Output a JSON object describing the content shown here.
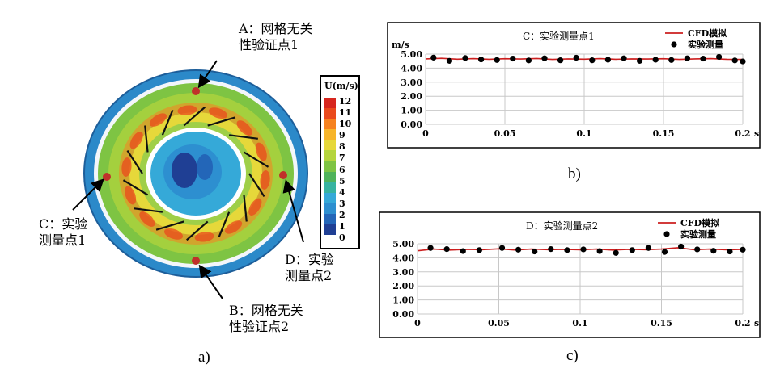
{
  "panel_a": {
    "caption": "a)",
    "callouts": {
      "A": [
        "A：网格无关",
        "性验证点1"
      ],
      "B": [
        "B：网格无关",
        "性验证点2"
      ],
      "C": [
        "C：实验",
        "测量点1"
      ],
      "D": [
        "D：实验",
        "测量点2"
      ]
    },
    "colorbar": {
      "title": "U(m/s)",
      "ticks": [
        "12",
        "11",
        "10",
        "9",
        "8",
        "7",
        "6",
        "5",
        "4",
        "3",
        "2",
        "1",
        "0"
      ],
      "colors": [
        "#d7261e",
        "#ea4a1c",
        "#f6821f",
        "#f7b52a",
        "#e6d83a",
        "#b5d53c",
        "#7ec443",
        "#4fb35a",
        "#36b3a0",
        "#35a9d8",
        "#2d8fd0",
        "#2366b8",
        "#1f3f94"
      ]
    },
    "colors": {
      "marker": "#c0302a"
    }
  },
  "chart_data": [
    {
      "type": "scatter",
      "title": "C：实验测量点1",
      "ylabel": "m/s",
      "xlabel": "s",
      "ylim": [
        0,
        5
      ],
      "xlim": [
        0,
        0.2
      ],
      "yticks": [
        "5.00",
        "4.00",
        "3.00",
        "2.00",
        "1.00",
        "0.00"
      ],
      "xticks": [
        "0",
        "0.05",
        "0.1",
        "0.15",
        "0.2"
      ],
      "caption": "b)",
      "legend": [
        "CFD模拟",
        "实验测量"
      ],
      "series": [
        {
          "name": "CFD模拟",
          "kind": "line",
          "color": "#cc1f1f",
          "x": [
            0,
            0.01,
            0.02,
            0.03,
            0.04,
            0.05,
            0.06,
            0.07,
            0.08,
            0.09,
            0.1,
            0.11,
            0.12,
            0.13,
            0.14,
            0.15,
            0.16,
            0.17,
            0.18,
            0.19,
            0.2
          ],
          "y": [
            4.66,
            4.7,
            4.64,
            4.68,
            4.63,
            4.67,
            4.65,
            4.69,
            4.62,
            4.66,
            4.64,
            4.68,
            4.63,
            4.66,
            4.65,
            4.67,
            4.62,
            4.66,
            4.68,
            4.63,
            4.62
          ]
        },
        {
          "name": "实验测量",
          "kind": "points",
          "color": "#000000",
          "x": [
            0.005,
            0.015,
            0.025,
            0.035,
            0.045,
            0.055,
            0.065,
            0.075,
            0.085,
            0.095,
            0.105,
            0.115,
            0.125,
            0.135,
            0.145,
            0.155,
            0.165,
            0.175,
            0.185,
            0.195,
            0.2
          ],
          "y": [
            4.75,
            4.52,
            4.72,
            4.62,
            4.58,
            4.68,
            4.55,
            4.7,
            4.56,
            4.74,
            4.56,
            4.6,
            4.7,
            4.52,
            4.6,
            4.58,
            4.7,
            4.68,
            4.8,
            4.55,
            4.48
          ]
        }
      ]
    },
    {
      "type": "scatter",
      "title": "D：实验测量点2",
      "ylabel": "",
      "xlabel": "s",
      "ylim": [
        0,
        5
      ],
      "xlim": [
        0,
        0.2
      ],
      "yticks": [
        "5.00",
        "4.00",
        "3.00",
        "2.00",
        "1.00",
        "0.00"
      ],
      "xticks": [
        "0",
        "0.05",
        "0.1",
        "0.15",
        "0.2"
      ],
      "caption": "c)",
      "legend": [
        "CFD模拟",
        "实验测量"
      ],
      "series": [
        {
          "name": "CFD模拟",
          "kind": "line",
          "color": "#cc1f1f",
          "x": [
            0,
            0.01,
            0.02,
            0.03,
            0.04,
            0.05,
            0.06,
            0.07,
            0.08,
            0.09,
            0.1,
            0.11,
            0.12,
            0.13,
            0.14,
            0.15,
            0.16,
            0.17,
            0.18,
            0.19,
            0.2
          ],
          "y": [
            4.5,
            4.62,
            4.55,
            4.6,
            4.58,
            4.64,
            4.56,
            4.62,
            4.58,
            4.6,
            4.57,
            4.62,
            4.55,
            4.6,
            4.58,
            4.62,
            4.72,
            4.58,
            4.62,
            4.57,
            4.6
          ]
        },
        {
          "name": "实验测量",
          "kind": "points",
          "color": "#000000",
          "x": [
            0.008,
            0.018,
            0.028,
            0.038,
            0.052,
            0.062,
            0.072,
            0.082,
            0.092,
            0.102,
            0.112,
            0.122,
            0.132,
            0.142,
            0.152,
            0.162,
            0.172,
            0.182,
            0.192,
            0.2
          ],
          "y": [
            4.7,
            4.62,
            4.48,
            4.55,
            4.7,
            4.58,
            4.45,
            4.62,
            4.55,
            4.6,
            4.48,
            4.35,
            4.55,
            4.7,
            4.42,
            4.8,
            4.6,
            4.5,
            4.45,
            4.58
          ]
        }
      ]
    }
  ]
}
